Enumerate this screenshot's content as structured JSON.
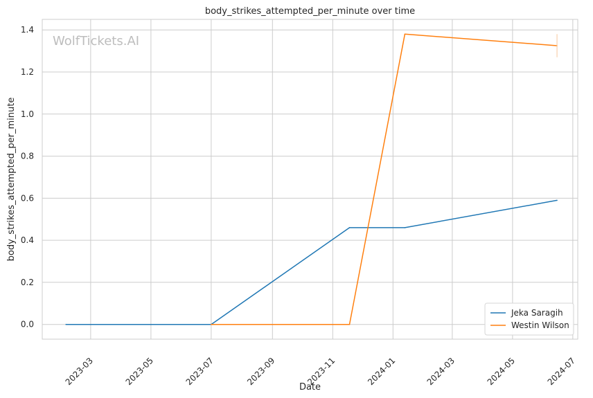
{
  "chart_data": {
    "type": "line",
    "title": "body_strikes_attempted_per_minute over time",
    "xlabel": "Date",
    "ylabel": "body_strikes_attempted_per_minute",
    "watermark": "WolfTickets.AI",
    "x_ticks": [
      "2023-03",
      "2023-05",
      "2023-07",
      "2023-09",
      "2023-11",
      "2024-01",
      "2024-03",
      "2024-05",
      "2024-07"
    ],
    "y_ticks": [
      "0.0",
      "0.2",
      "0.4",
      "0.6",
      "0.8",
      "1.0",
      "1.2",
      "1.4"
    ],
    "xlim": [
      "2023-01-11",
      "2024-07-06"
    ],
    "ylim": [
      -0.07,
      1.45
    ],
    "grid": true,
    "legend_position": "lower-right",
    "series": [
      {
        "name": "Jeka Saragih",
        "color": "#1f77b4",
        "x": [
          "2023-02-04",
          "2023-07-01",
          "2023-11-18",
          "2024-01-13",
          "2024-06-15"
        ],
        "y": [
          0.0,
          0.0,
          0.46,
          0.46,
          0.59
        ]
      },
      {
        "name": "Westin Wilson",
        "color": "#ff7f0e",
        "x": [
          "2023-07-01",
          "2023-11-18",
          "2024-01-13",
          "2024-06-15"
        ],
        "y": [
          0.0,
          0.0,
          1.38,
          1.325
        ]
      }
    ]
  }
}
